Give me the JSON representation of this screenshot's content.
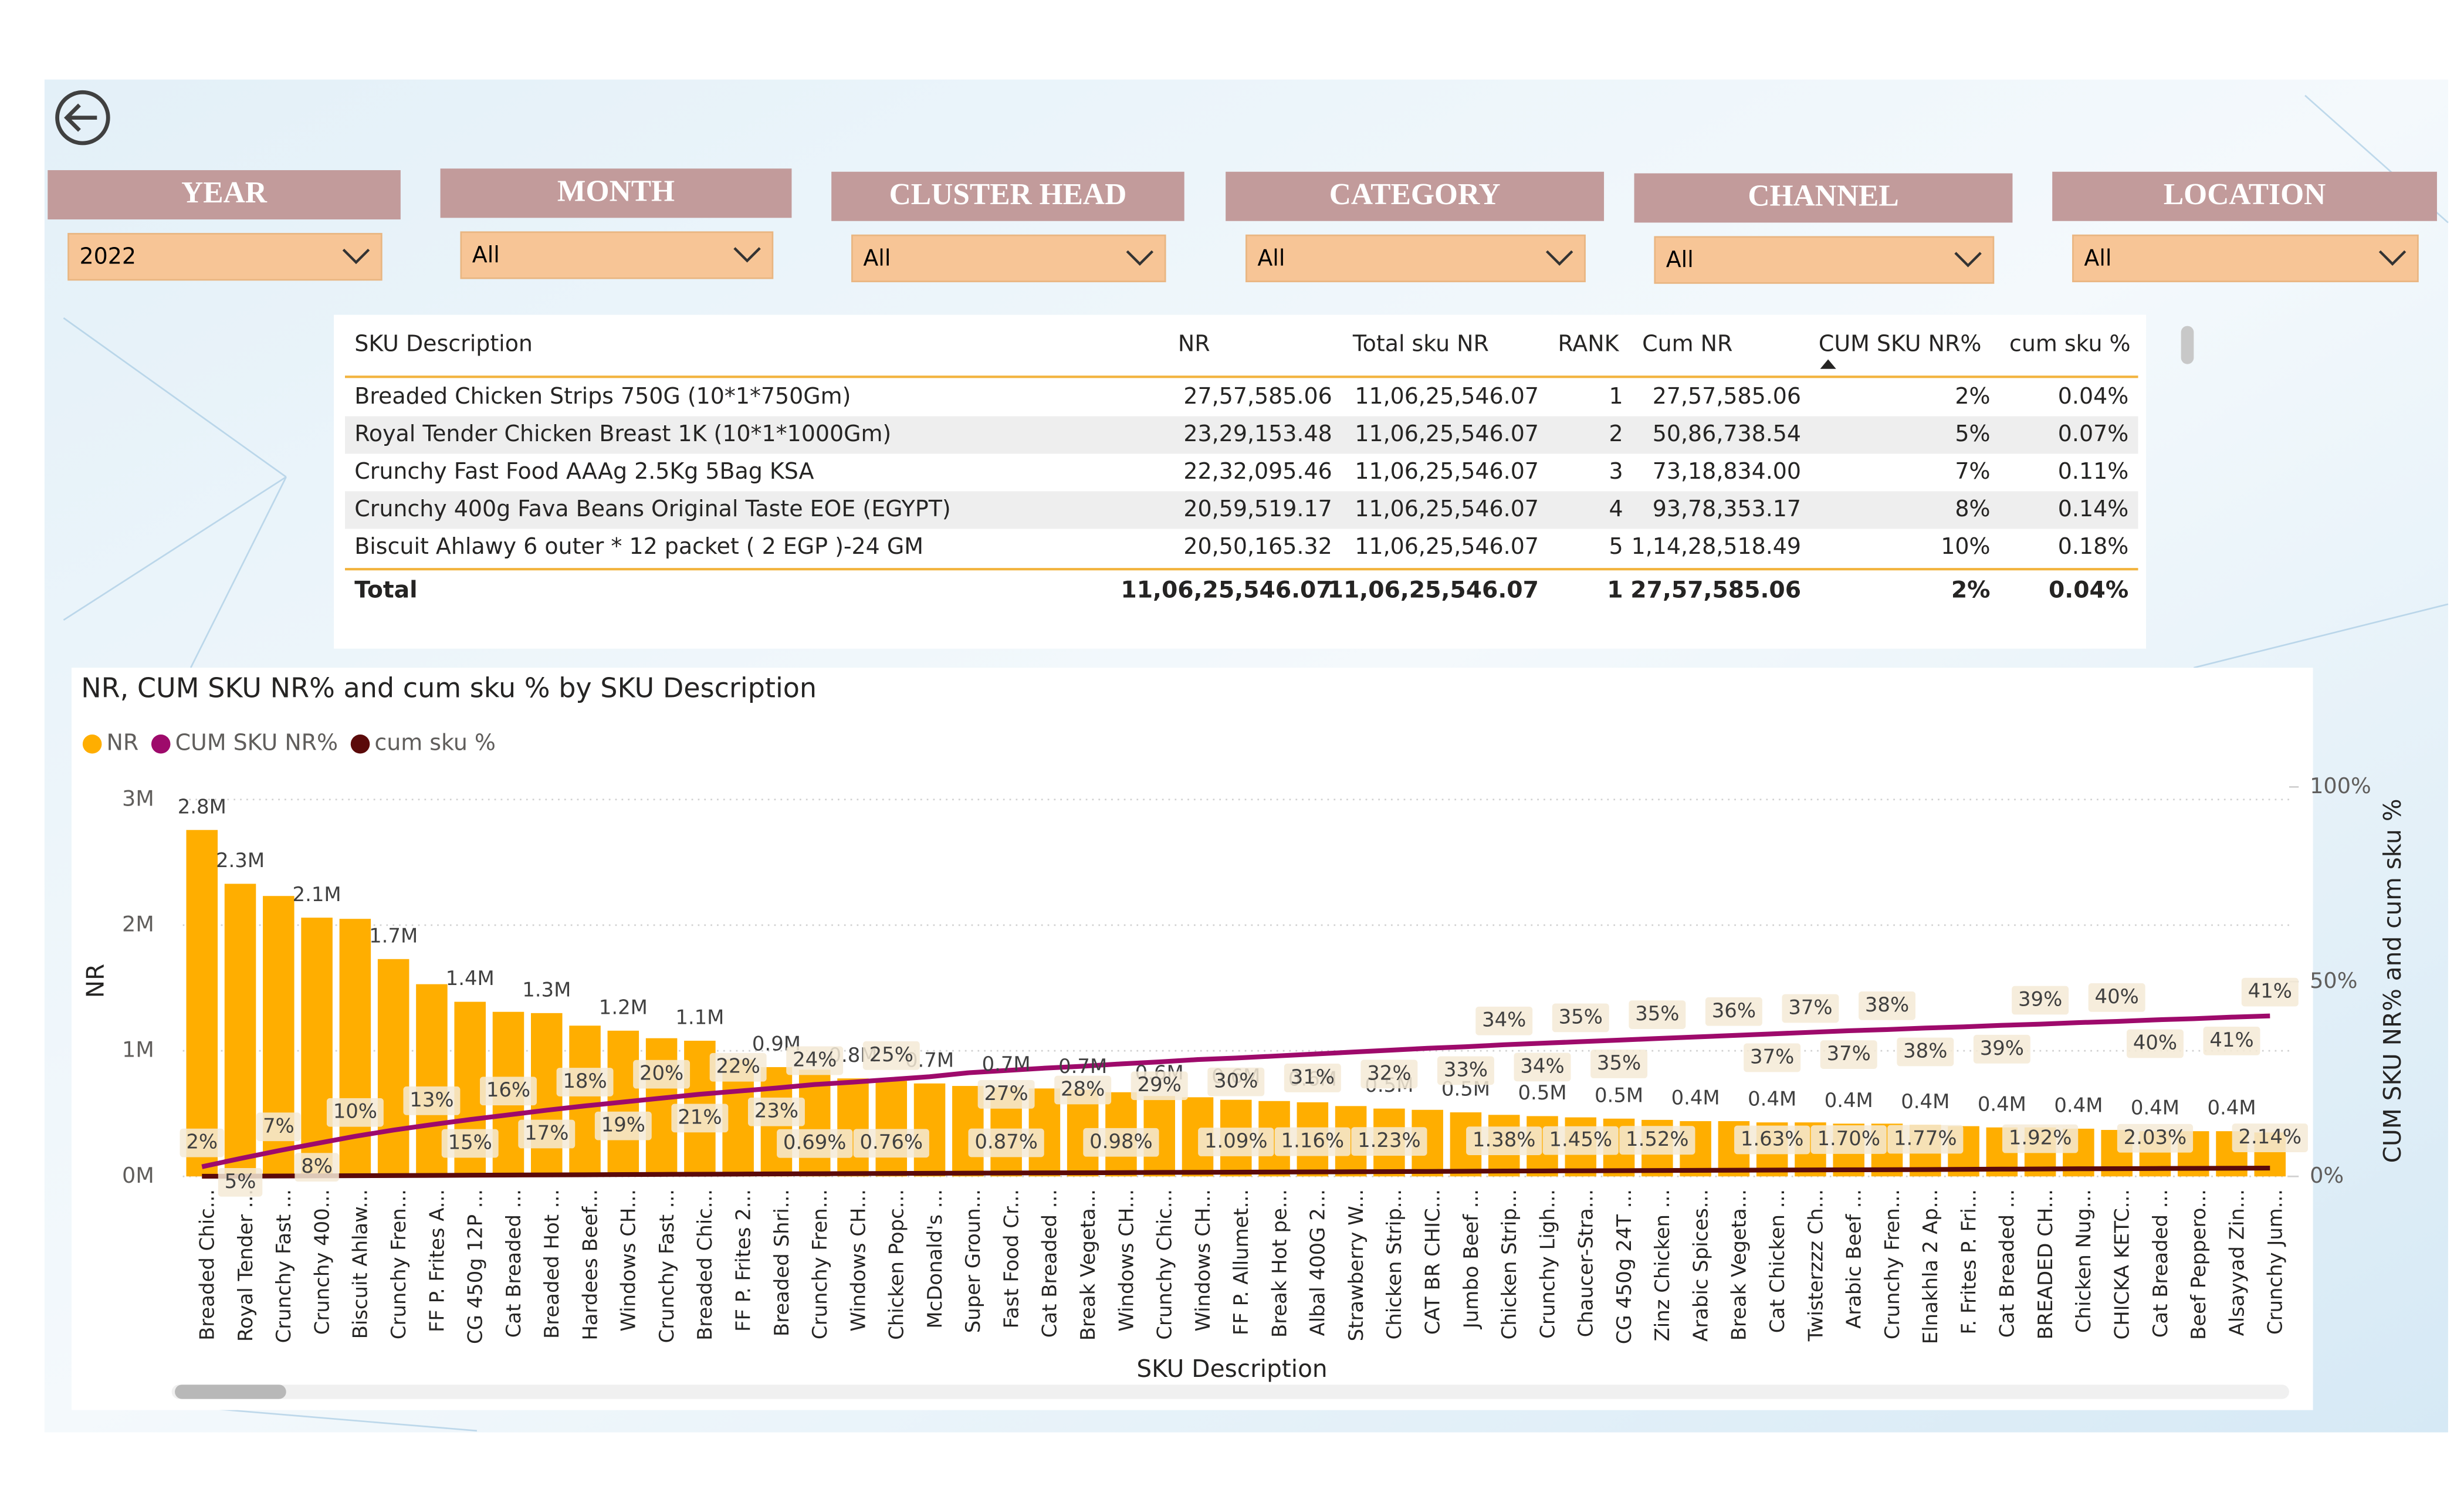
{
  "filters": [
    {
      "label": "YEAR",
      "value": "2022"
    },
    {
      "label": "MONTH",
      "value": "All"
    },
    {
      "label": "CLUSTER HEAD",
      "value": "All"
    },
    {
      "label": "CATEGORY",
      "value": "All"
    },
    {
      "label": "CHANNEL",
      "value": "All"
    },
    {
      "label": "LOCATION",
      "value": "All"
    }
  ],
  "table": {
    "columns": [
      "SKU Description",
      "NR",
      "Total sku NR",
      "RANK",
      "Cum NR",
      "CUM SKU NR%",
      "cum sku %"
    ],
    "rows": [
      [
        "Breaded Chicken Strips 750G (10*1*750Gm)",
        "27,57,585.06",
        "11,06,25,546.07",
        "1",
        "27,57,585.06",
        "2%",
        "0.04%"
      ],
      [
        "Royal Tender Chicken Breast 1K (10*1*1000Gm)",
        "23,29,153.48",
        "11,06,25,546.07",
        "2",
        "50,86,738.54",
        "5%",
        "0.07%"
      ],
      [
        "Crunchy Fast Food AAAg 2.5Kg 5Bag KSA",
        "22,32,095.46",
        "11,06,25,546.07",
        "3",
        "73,18,834.00",
        "7%",
        "0.11%"
      ],
      [
        "Crunchy 400g Fava Beans Original Taste EOE (EGYPT)",
        "20,59,519.17",
        "11,06,25,546.07",
        "4",
        "93,78,353.17",
        "8%",
        "0.14%"
      ],
      [
        "Biscuit Ahlawy 6 outer * 12 packet ( 2 EGP )-24 GM",
        "20,50,165.32",
        "11,06,25,546.07",
        "5",
        "1,14,28,518.49",
        "10%",
        "0.18%"
      ]
    ],
    "total": [
      "Total",
      "11,06,25,546.07",
      "11,06,25,546.07",
      "1",
      "27,57,585.06",
      "2%",
      "0.04%"
    ]
  },
  "chart_data": {
    "type": "combo",
    "title": "NR, CUM SKU NR% and cum sku % by SKU Description",
    "x_label": "SKU Description",
    "y_label": "NR",
    "y2_label": "CUM SKU NR% and cum sku %",
    "legend": "top-left",
    "grid": true,
    "categories": [
      "Breaded Chic...",
      "Royal Tender ...",
      "Crunchy Fast ...",
      "Crunchy 400...",
      "Biscuit Ahlaw...",
      "Crunchy Fren...",
      "FF P. Frites A...",
      "CG 450g 12P ...",
      "Cat Breaded ...",
      "Breaded Hot ...",
      "Hardees Beef...",
      "Windows CH...",
      "Crunchy Fast ...",
      "Breaded Chic...",
      "FF P. Frites 2...",
      "Breaded Shri...",
      "Crunchy Fren...",
      "Windows CH...",
      "Chicken Popc...",
      "McDonald's ...",
      "Super Groun...",
      "Fast Food Cr...",
      "Cat Breaded ...",
      "Break Vegeta...",
      "Windows CH...",
      "Crunchy Chic...",
      "Windows CH...",
      "FF P. Allumet...",
      "Break Hot pe...",
      "Albal 400G 2...",
      "Strawberry W...",
      "Chicken Strip...",
      "CAT BR CHIC...",
      "Jumbo Beef ...",
      "Chicken Strip...",
      "Crunchy Ligh...",
      "Chaucer-Stra...",
      "CG 450g 24T ...",
      "Zinz Chicken ...",
      "Arabic Spices...",
      "Break Vegeta...",
      "Cat Chicken ...",
      "Twisterzzz Ch...",
      "Arabic Beef ...",
      "Crunchy Fren...",
      "Elnakhla 2 Ap...",
      "F. Frites P. Fri...",
      "Cat Breaded ...",
      "BREADED CH...",
      "Chicken Nug...",
      "CHICKA KETC...",
      "Cat Breaded ...",
      "Beef Peppero...",
      "Alsayyad Zin...",
      "Crunchy Jum..."
    ],
    "ylim": [
      0,
      3100000
    ],
    "yticks": [
      {
        "value": 0,
        "label": "0M"
      },
      {
        "value": 1000000,
        "label": "1M"
      },
      {
        "value": 2000000,
        "label": "2M"
      },
      {
        "value": 3000000,
        "label": "3M"
      }
    ],
    "y2lim": [
      0,
      100
    ],
    "y2ticks": [
      {
        "value": 0,
        "label": "0%"
      },
      {
        "value": 50,
        "label": "50%"
      },
      {
        "value": 100,
        "label": "100%"
      }
    ],
    "series": [
      {
        "name": "NR",
        "type": "bar",
        "color": "#FFAE00",
        "values": [
          2757585.06,
          2329153.48,
          2232095.46,
          2059519.17,
          2050165.32,
          1730000,
          1530000,
          1390000,
          1310000,
          1300000,
          1200000,
          1160000,
          1100000,
          1080000,
          930000,
          870000,
          850000,
          780000,
          760000,
          740000,
          720000,
          710000,
          700000,
          690000,
          670000,
          640000,
          630000,
          610000,
          600000,
          590000,
          560000,
          540000,
          530000,
          510000,
          490000,
          480000,
          470000,
          460000,
          450000,
          440000,
          440000,
          430000,
          430000,
          420000,
          420000,
          410000,
          400000,
          390000,
          390000,
          380000,
          370000,
          360000,
          360000,
          360000,
          350000
        ],
        "value_labels": [
          "2.8M",
          "2.3M",
          null,
          "2.1M",
          null,
          "1.7M",
          null,
          "1.4M",
          null,
          "1.3M",
          null,
          "1.2M",
          null,
          "1.1M",
          null,
          "0.9M",
          null,
          "0.8M",
          null,
          "0.7M",
          null,
          "0.7M",
          null,
          "0.7M",
          null,
          "0.6M",
          null,
          "0.6M",
          null,
          "0.6M",
          null,
          "0.5M",
          null,
          "0.5M",
          null,
          "0.5M",
          null,
          "0.5M",
          null,
          "0.4M",
          null,
          "0.4M",
          null,
          "0.4M",
          null,
          "0.4M",
          null,
          "0.4M",
          null,
          "0.4M",
          null,
          "0.4M",
          null,
          "0.4M",
          null
        ]
      },
      {
        "name": "CUM SKU NR%",
        "type": "line",
        "axis": "y2",
        "color": "#9E0A6B",
        "values": [
          2.49,
          4.6,
          6.6,
          8.48,
          10.3,
          11.9,
          13.3,
          14.6,
          15.8,
          17.0,
          18.1,
          19.1,
          20.1,
          21.1,
          21.9,
          22.7,
          23.6,
          24.2,
          24.9,
          25.6,
          26.6,
          27.2,
          27.8,
          28.3,
          28.9,
          29.4,
          30.0,
          30.4,
          30.9,
          31.4,
          31.9,
          32.4,
          32.9,
          33.3,
          33.8,
          34.2,
          34.6,
          35.0,
          35.4,
          35.8,
          36.2,
          36.6,
          37.0,
          37.4,
          37.7,
          38.1,
          38.4,
          38.8,
          39.1,
          39.5,
          39.8,
          40.2,
          40.5,
          40.9,
          41.2
        ],
        "value_labels": [
          "2%",
          "5%",
          "7%",
          "8%",
          "10%",
          null,
          "13%",
          "15%",
          "16%",
          "17%",
          "18%",
          "19%",
          "20%",
          "21%",
          "22%",
          "23%",
          "24%",
          null,
          "25%",
          null,
          null,
          "27%",
          null,
          "28%",
          null,
          "29%",
          null,
          "30%",
          null,
          "31%",
          null,
          "32%",
          null,
          "33%",
          "34%",
          "34%",
          "35%",
          "35%",
          "35%",
          null,
          "36%",
          "37%",
          "37%",
          "37%",
          "38%",
          "38%",
          null,
          "39%",
          "39%",
          null,
          "40%",
          "40%",
          null,
          "41%",
          "41%"
        ]
      },
      {
        "name": "cum sku %",
        "type": "line",
        "axis": "y2",
        "color": "#5B0A0A",
        "values": [
          0.04,
          0.07,
          0.11,
          0.14,
          0.18,
          0.22,
          0.26,
          0.31,
          0.35,
          0.39,
          0.43,
          0.48,
          0.52,
          0.56,
          0.6,
          0.65,
          0.69,
          0.73,
          0.76,
          0.8,
          0.84,
          0.87,
          0.91,
          0.94,
          0.98,
          1.02,
          1.05,
          1.09,
          1.12,
          1.16,
          1.19,
          1.23,
          1.28,
          1.33,
          1.38,
          1.41,
          1.45,
          1.48,
          1.52,
          1.56,
          1.59,
          1.63,
          1.66,
          1.7,
          1.73,
          1.77,
          1.82,
          1.87,
          1.92,
          1.96,
          1.99,
          2.03,
          2.07,
          2.1,
          2.14
        ],
        "value_labels": [
          null,
          null,
          null,
          null,
          null,
          null,
          null,
          null,
          null,
          null,
          null,
          null,
          null,
          null,
          null,
          null,
          "0.69%",
          null,
          "0.76%",
          null,
          null,
          "0.87%",
          null,
          null,
          "0.98%",
          null,
          null,
          "1.09%",
          null,
          "1.16%",
          null,
          "1.23%",
          null,
          null,
          "1.38%",
          null,
          "1.45%",
          null,
          "1.52%",
          null,
          null,
          "1.63%",
          null,
          "1.70%",
          null,
          "1.77%",
          null,
          null,
          "1.92%",
          null,
          null,
          "2.03%",
          null,
          null,
          "2.14%"
        ]
      }
    ]
  }
}
